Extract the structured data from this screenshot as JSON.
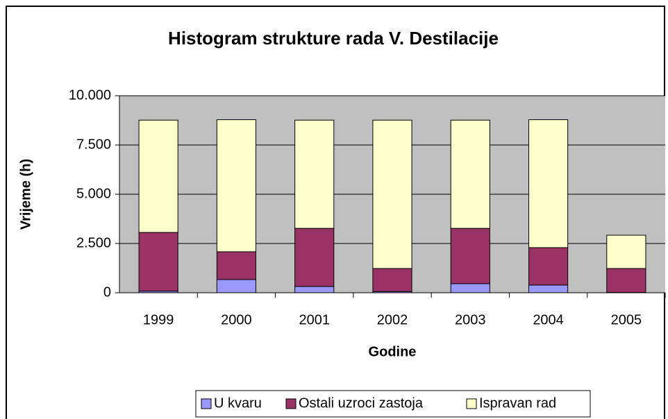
{
  "chart_data": {
    "type": "stacked_bar",
    "title": "Histogram strukture rada V. Destilacije",
    "xlabel": "Godine",
    "ylabel": "Vrijeme (h)",
    "categories": [
      "1999",
      "2000",
      "2001",
      "2002",
      "2003",
      "2004",
      "2005"
    ],
    "series": [
      {
        "name": "U kvaru",
        "color": "#9999ff",
        "values": [
          80,
          670,
          320,
          60,
          460,
          390,
          20
        ]
      },
      {
        "name": "Ostali uzroci zastoja",
        "color": "#993366",
        "values": [
          2980,
          1410,
          2950,
          1170,
          2810,
          1900,
          1210
        ]
      },
      {
        "name": "Ispravan rad",
        "color": "#ffffcc",
        "values": [
          5700,
          6704,
          5490,
          7530,
          5490,
          6494,
          1690
        ]
      }
    ],
    "ylim": [
      0,
      10000
    ],
    "yticks": [
      0,
      {
        "value": 2500,
        "label": "2.500"
      },
      {
        "value": 5000,
        "label": "5.000"
      },
      {
        "value": 7500,
        "label": "7.500"
      },
      {
        "value": 10000,
        "label": "10.000"
      }
    ],
    "grid": true,
    "legend": "bottom"
  }
}
